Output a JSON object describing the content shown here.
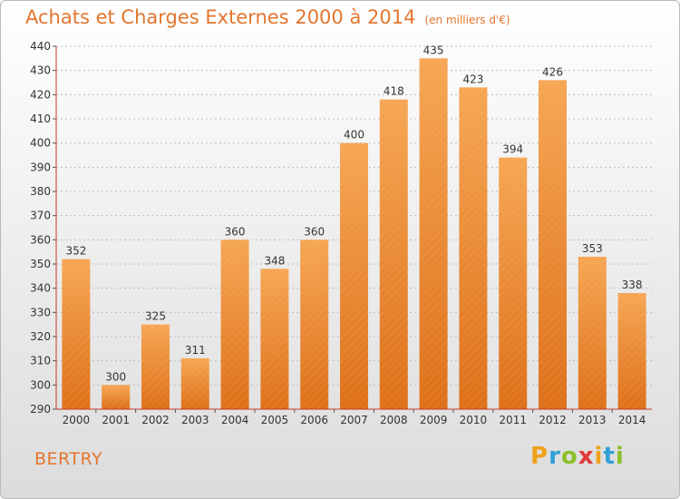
{
  "header": {
    "title": "Achats et Charges Externes 2000 à 2014",
    "subtitle": "(en milliers d'€)"
  },
  "footer": {
    "city": "BERTRY",
    "logo": "Proxiti"
  },
  "colors": {
    "bar_top": "#f6a654",
    "bar_bottom": "#de7019",
    "title": "#e2762f",
    "axis": "#c0392b",
    "grid": "#bdbdbd"
  },
  "chart_data": {
    "type": "bar",
    "title": "Achats et Charges Externes 2000 à 2014",
    "subtitle": "(en milliers d'€)",
    "categories": [
      "2000",
      "2001",
      "2002",
      "2003",
      "2004",
      "2005",
      "2006",
      "2007",
      "2008",
      "2009",
      "2010",
      "2011",
      "2012",
      "2013",
      "2014"
    ],
    "values": [
      352,
      300,
      325,
      311,
      360,
      348,
      360,
      400,
      418,
      435,
      423,
      394,
      426,
      353,
      338
    ],
    "ylim": [
      290,
      440
    ],
    "ytick_step": 10,
    "grid": true,
    "xlabel": "",
    "ylabel": ""
  }
}
